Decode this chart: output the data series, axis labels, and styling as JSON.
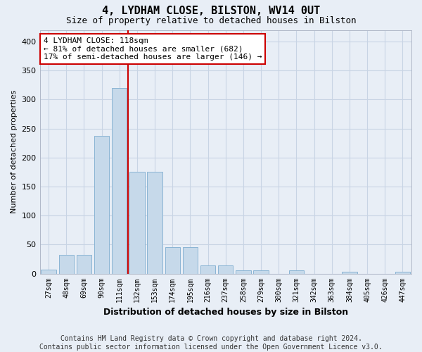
{
  "title": "4, LYDHAM CLOSE, BILSTON, WV14 0UT",
  "subtitle": "Size of property relative to detached houses in Bilston",
  "xlabel": "Distribution of detached houses by size in Bilston",
  "ylabel": "Number of detached properties",
  "categories": [
    "27sqm",
    "48sqm",
    "69sqm",
    "90sqm",
    "111sqm",
    "132sqm",
    "153sqm",
    "174sqm",
    "195sqm",
    "216sqm",
    "237sqm",
    "258sqm",
    "279sqm",
    "300sqm",
    "321sqm",
    "342sqm",
    "363sqm",
    "384sqm",
    "405sqm",
    "426sqm",
    "447sqm"
  ],
  "values": [
    7,
    32,
    32,
    237,
    320,
    175,
    175,
    46,
    46,
    14,
    14,
    5,
    5,
    0,
    5,
    0,
    0,
    3,
    0,
    0,
    3
  ],
  "bar_color": "#c6d9ea",
  "bar_edge_color": "#8ab4d4",
  "vline_color": "#cc0000",
  "vline_index": 4,
  "annotation_line1": "4 LYDHAM CLOSE: 118sqm",
  "annotation_line2": "← 81% of detached houses are smaller (682)",
  "annotation_line3": "17% of semi-detached houses are larger (146) →",
  "annotation_box_color": "#ffffff",
  "annotation_box_edge": "#cc0000",
  "ylim": [
    0,
    420
  ],
  "yticks": [
    0,
    50,
    100,
    150,
    200,
    250,
    300,
    350,
    400
  ],
  "grid_color": "#c8d4e4",
  "footer_line1": "Contains HM Land Registry data © Crown copyright and database right 2024.",
  "footer_line2": "Contains public sector information licensed under the Open Government Licence v3.0.",
  "bg_color": "#e8eef6",
  "plot_bg_color": "#e8eef6",
  "title_fontsize": 11,
  "subtitle_fontsize": 9,
  "ylabel_fontsize": 8,
  "xlabel_fontsize": 9,
  "tick_fontsize": 7,
  "ytick_fontsize": 8,
  "footer_fontsize": 7,
  "annot_fontsize": 8
}
